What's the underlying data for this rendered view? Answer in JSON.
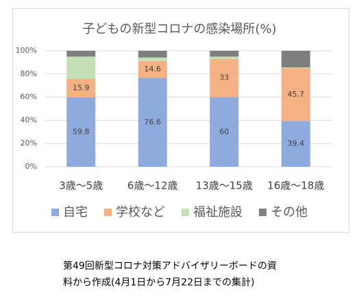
{
  "chart_data": {
    "type": "stacked_bar",
    "title": "子どもの新型コロナの感染場所(%)",
    "categories": [
      "3歳〜5歳",
      "6歳〜12歳",
      "13歳〜15歳",
      "16歳〜18歳"
    ],
    "series": [
      {
        "name": "自宅",
        "color": "#8faadc",
        "values": [
          59.8,
          76.6,
          60,
          39.4
        ],
        "show_labels": true
      },
      {
        "name": "学校など",
        "color": "#f4b183",
        "values": [
          15.9,
          14.6,
          33,
          45.7
        ],
        "show_labels": true
      },
      {
        "name": "福祉施設",
        "color": "#c5e0b4",
        "values": [
          19.3,
          3,
          2,
          0.5
        ],
        "show_labels": false
      },
      {
        "name": "その他",
        "color": "#7f7f7f",
        "values": [
          5,
          5.8,
          5,
          14.4
        ],
        "show_labels": false
      }
    ],
    "ylim": [
      0,
      100
    ],
    "yticks": [
      {
        "value": 0,
        "label": "0%"
      },
      {
        "value": 20,
        "label": "20%"
      },
      {
        "value": 40,
        "label": "40%"
      },
      {
        "value": 60,
        "label": "60%"
      },
      {
        "value": 80,
        "label": "80%"
      },
      {
        "value": 100,
        "label": "100%"
      }
    ],
    "grid": true,
    "legend": "bottom"
  },
  "caption": [
    "第49回新型コロナ対策アドバイザリーボードの資",
    "料から作成(4月1日から7月22日までの集計)"
  ]
}
